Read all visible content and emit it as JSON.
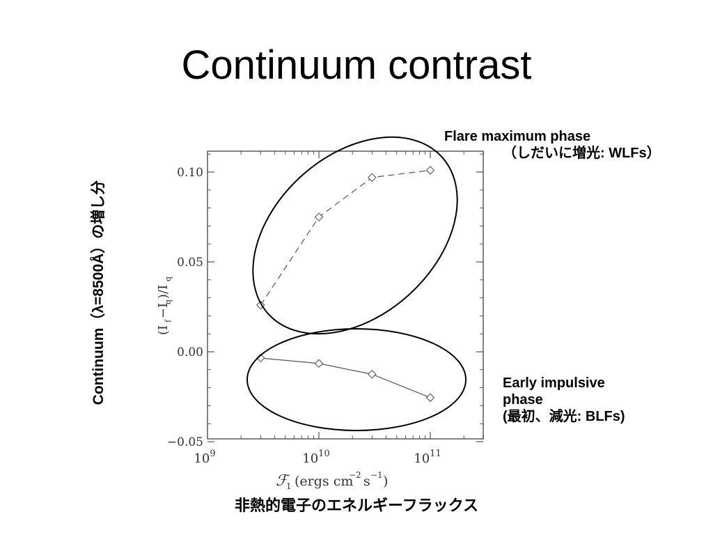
{
  "slide": {
    "title": "Continuum contrast",
    "y_axis_annotation": "Continuum（λ=8500Å）の増し分",
    "x_axis_annotation": "非熱的電子のエネルギーフラックス"
  },
  "annotations": {
    "top": {
      "line1": "Flare maximum phase",
      "line2": "（しだいに増光: WLFs）"
    },
    "bottom": {
      "line1": "Early impulsive",
      "line2": "phase",
      "line3": "(最初、減光: BLFs)"
    }
  },
  "chart_data": {
    "type": "line",
    "x_scale": "log",
    "xlim": [
      1000000000.0,
      300000000000.0
    ],
    "ylim": [
      -0.05,
      0.115
    ],
    "y_ticks": [
      {
        "value": -0.05,
        "label": "−0.05"
      },
      {
        "value": 0.0,
        "label": "0.00"
      },
      {
        "value": 0.05,
        "label": "0.05"
      },
      {
        "value": 0.1,
        "label": "0.10"
      }
    ],
    "x_ticks": [
      {
        "value": 1000000000.0,
        "base": "10",
        "exp": "9"
      },
      {
        "value": 10000000000.0,
        "base": "10",
        "exp": "10"
      },
      {
        "value": 100000000000.0,
        "base": "10",
        "exp": "11"
      }
    ],
    "xlabel": "𝓕₁ (ergs cm⁻² s⁻¹)",
    "ylabel": "(I_f−I_q)/I_q",
    "series": [
      {
        "style": "dashed",
        "marker": "diamond",
        "color": "#555555",
        "x": [
          3000000000.0,
          10000000000.0,
          30000000000.0,
          100000000000.0
        ],
        "y": [
          0.026,
          0.075,
          0.097,
          0.101
        ]
      },
      {
        "style": "solid",
        "marker": "diamond",
        "color": "#555555",
        "x": [
          3000000000.0,
          10000000000.0,
          30000000000.0,
          100000000000.0
        ],
        "y": [
          -0.0035,
          -0.0065,
          -0.0125,
          -0.0255
        ]
      }
    ],
    "grid": false
  }
}
